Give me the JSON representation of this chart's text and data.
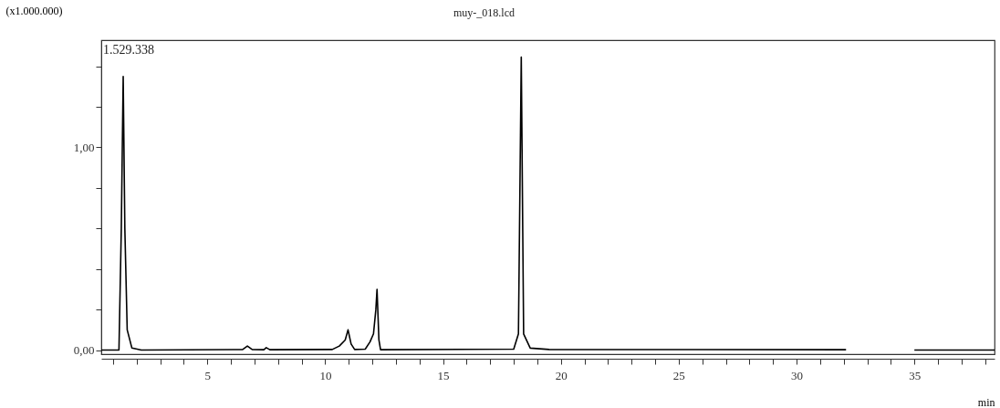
{
  "chart_data": {
    "type": "line",
    "title": "muy-_018.lcd",
    "ylabel": "(x1.000.000)",
    "xlabel": "min",
    "annotations": [
      "1.529.338"
    ],
    "x": [
      0.5,
      1.25,
      1.35,
      1.43,
      1.5,
      1.6,
      1.8,
      2.2,
      6.5,
      6.7,
      6.9,
      7.4,
      7.5,
      7.65,
      10.3,
      10.6,
      10.85,
      10.97,
      11.1,
      11.25,
      11.7,
      11.9,
      12.05,
      12.15,
      12.2,
      12.28,
      12.35,
      18.0,
      18.2,
      18.32,
      18.42,
      18.7,
      19.5,
      32.1,
      33.5,
      35.0,
      38.4
    ],
    "series": [
      {
        "color": "#000000",
        "values": [
          0,
          0,
          0.6,
          1.35,
          0.6,
          0.1,
          0.01,
          0,
          0.003,
          0.02,
          0.003,
          0.002,
          0.012,
          0.002,
          0.003,
          0.02,
          0.05,
          0.1,
          0.03,
          0.003,
          0.005,
          0.04,
          0.08,
          0.2,
          0.3,
          0.05,
          0.002,
          0.005,
          0.08,
          1.446,
          0.08,
          0.01,
          0.003,
          0.002,
          null,
          0,
          0
        ]
      }
    ],
    "xlim": [
      0.5,
      38.4
    ],
    "ylim": [
      -0.02,
      1.529
    ],
    "xticks": [
      {
        "value": 1,
        "label": null
      },
      {
        "value": 2,
        "label": null
      },
      {
        "value": 3,
        "label": null
      },
      {
        "value": 4,
        "label": null
      },
      5,
      {
        "value": 6,
        "label": null
      },
      {
        "value": 7,
        "label": null
      },
      {
        "value": 8,
        "label": null
      },
      {
        "value": 9,
        "label": null
      },
      10,
      {
        "value": 11,
        "label": null
      },
      {
        "value": 12,
        "label": null
      },
      {
        "value": 13,
        "label": null
      },
      {
        "value": 14,
        "label": null
      },
      15,
      {
        "value": 16,
        "label": null
      },
      {
        "value": 17,
        "label": null
      },
      {
        "value": 18,
        "label": null
      },
      {
        "value": 19,
        "label": null
      },
      20,
      {
        "value": 21,
        "label": null
      },
      {
        "value": 22,
        "label": null
      },
      {
        "value": 23,
        "label": null
      },
      {
        "value": 24,
        "label": null
      },
      25,
      {
        "value": 26,
        "label": null
      },
      {
        "value": 27,
        "label": null
      },
      {
        "value": 28,
        "label": null
      },
      {
        "value": 29,
        "label": null
      },
      30,
      {
        "value": 31,
        "label": null
      },
      {
        "value": 32,
        "label": null
      },
      {
        "value": 33,
        "label": null
      },
      {
        "value": 34,
        "label": null
      },
      35,
      {
        "value": 36,
        "label": null
      },
      {
        "value": 37,
        "label": null
      },
      {
        "value": 38,
        "label": null
      }
    ],
    "yticks": [
      {
        "value": 0,
        "label": "0,00"
      },
      {
        "value": 0.2,
        "label": null
      },
      {
        "value": 0.4,
        "label": null
      },
      {
        "value": 0.6,
        "label": null
      },
      {
        "value": 0.8,
        "label": null
      },
      {
        "value": 1.0,
        "label": "1,00"
      },
      {
        "value": 1.2,
        "label": null
      },
      {
        "value": 1.4,
        "label": null
      }
    ],
    "grid": false,
    "marker": "none",
    "line_style": "solid"
  }
}
